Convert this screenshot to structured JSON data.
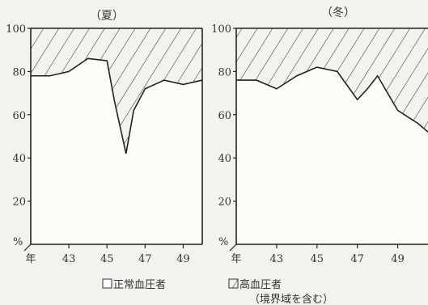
{
  "legend": {
    "normal_label": "正常血圧者",
    "high_label": "高血圧者",
    "note": "（境界域を含む）"
  },
  "chart_data": [
    {
      "type": "area",
      "title": "（夏）",
      "xlabel": "",
      "ylabel": "%",
      "ylim": [
        0,
        100
      ],
      "xlim": [
        41,
        50
      ],
      "y_ticks": [
        0,
        20,
        40,
        60,
        80,
        100
      ],
      "x_ticks": [
        43,
        45,
        47,
        49
      ],
      "x_origin_label": "年",
      "series": [
        {
          "name": "正常血圧者",
          "x": [
            41,
            42,
            43,
            44,
            45,
            45.4,
            46,
            46.4,
            47,
            48,
            49,
            50
          ],
          "y": [
            78,
            78,
            80,
            86,
            85,
            66,
            42,
            62,
            72,
            76,
            74,
            76
          ]
        }
      ],
      "fill_colors": {
        "normal": "#ffffff",
        "high": "hatched"
      }
    },
    {
      "type": "area",
      "title": "（冬）",
      "xlabel": "",
      "ylabel": "%",
      "ylim": [
        0,
        100
      ],
      "xlim": [
        41,
        50.5
      ],
      "y_ticks": [
        0,
        20,
        40,
        60,
        80,
        100
      ],
      "x_ticks": [
        43,
        45,
        47,
        49
      ],
      "x_origin_label": "年",
      "series": [
        {
          "name": "正常血圧者",
          "x": [
            41,
            42,
            43,
            44,
            45,
            46,
            47,
            47.5,
            48,
            49,
            50,
            50.5
          ],
          "y": [
            76,
            76,
            72,
            78,
            82,
            80,
            67,
            72,
            78,
            62,
            56,
            52
          ]
        }
      ],
      "fill_colors": {
        "normal": "#ffffff",
        "high": "hatched"
      }
    }
  ]
}
